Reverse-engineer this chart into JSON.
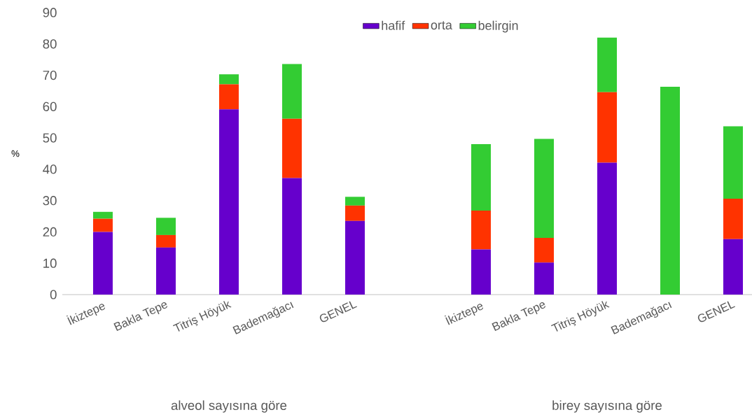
{
  "chart_data": {
    "type": "bar",
    "stacked": true,
    "ylabel": "%",
    "categories": [
      "İkiztepe",
      "Bakla Tepe",
      "Titriş Höyük",
      "Bademağacı",
      "GENEL",
      null,
      "İkiztepe",
      "Bakla Tepe",
      "Titriş Höyük",
      "Bademağacı",
      "GENEL"
    ],
    "series": [
      {
        "name": "hafif",
        "color": "#6600cc",
        "values": [
          20.0,
          15.0,
          59.1,
          37.2,
          23.5,
          null,
          14.4,
          10.2,
          42.1,
          0,
          17.7
        ]
      },
      {
        "name": "orta",
        "color": "#ff3300",
        "values": [
          4.2,
          4.0,
          8.0,
          18.9,
          4.9,
          null,
          12.4,
          7.9,
          22.5,
          0,
          12.9
        ]
      },
      {
        "name": "belirgin",
        "color": "#33cc33",
        "values": [
          2.2,
          5.5,
          3.2,
          17.5,
          2.8,
          null,
          21.2,
          31.6,
          17.4,
          66.3,
          23.1
        ]
      }
    ],
    "ylim": [
      0,
      90
    ],
    "yticks": [
      0,
      10,
      20,
      30,
      40,
      50,
      60,
      70,
      80,
      90
    ],
    "legend": "top",
    "annotations": [
      "alveol sayısına göre",
      "birey sayısına göre"
    ]
  }
}
